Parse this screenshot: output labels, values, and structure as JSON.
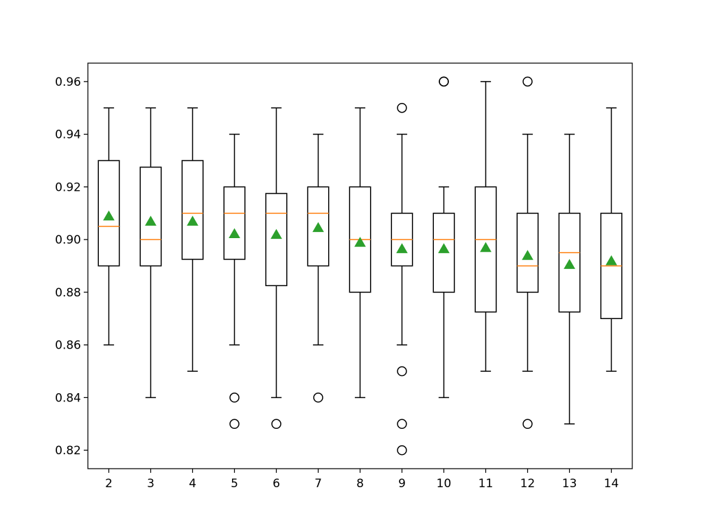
{
  "chart_data": {
    "type": "box",
    "title": "",
    "xlabel": "",
    "ylabel": "",
    "ylim": [
      0.813,
      0.967
    ],
    "yticks": [
      "0.82",
      "0.84",
      "0.86",
      "0.88",
      "0.90",
      "0.92",
      "0.94",
      "0.96"
    ],
    "ytick_values": [
      0.82,
      0.84,
      0.86,
      0.88,
      0.9,
      0.92,
      0.94,
      0.96
    ],
    "categories": [
      "2",
      "3",
      "4",
      "5",
      "6",
      "7",
      "8",
      "9",
      "10",
      "11",
      "12",
      "13",
      "14"
    ],
    "grid": false,
    "show_means": true,
    "boxes": [
      {
        "category": "2",
        "whislo": 0.86,
        "q1": 0.89,
        "median": 0.905,
        "q3": 0.93,
        "whishi": 0.95,
        "mean": 0.9087,
        "fliers": []
      },
      {
        "category": "3",
        "whislo": 0.84,
        "q1": 0.89,
        "median": 0.9,
        "q3": 0.9275,
        "whishi": 0.95,
        "mean": 0.9067,
        "fliers": []
      },
      {
        "category": "4",
        "whislo": 0.85,
        "q1": 0.8925,
        "median": 0.91,
        "q3": 0.93,
        "whishi": 0.95,
        "mean": 0.9067,
        "fliers": []
      },
      {
        "category": "5",
        "whislo": 0.86,
        "q1": 0.8925,
        "median": 0.91,
        "q3": 0.92,
        "whishi": 0.94,
        "mean": 0.902,
        "fliers": [
          0.84,
          0.83
        ]
      },
      {
        "category": "6",
        "whislo": 0.84,
        "q1": 0.8825,
        "median": 0.91,
        "q3": 0.9175,
        "whishi": 0.95,
        "mean": 0.9017,
        "fliers": [
          0.83
        ]
      },
      {
        "category": "7",
        "whislo": 0.86,
        "q1": 0.89,
        "median": 0.91,
        "q3": 0.92,
        "whishi": 0.94,
        "mean": 0.9043,
        "fliers": [
          0.84
        ]
      },
      {
        "category": "8",
        "whislo": 0.84,
        "q1": 0.88,
        "median": 0.9,
        "q3": 0.92,
        "whishi": 0.95,
        "mean": 0.8987,
        "fliers": []
      },
      {
        "category": "9",
        "whislo": 0.86,
        "q1": 0.89,
        "median": 0.9,
        "q3": 0.91,
        "whishi": 0.94,
        "mean": 0.8963,
        "fliers": [
          0.95,
          0.85,
          0.83,
          0.82
        ]
      },
      {
        "category": "10",
        "whislo": 0.84,
        "q1": 0.88,
        "median": 0.9,
        "q3": 0.91,
        "whishi": 0.92,
        "mean": 0.8963,
        "fliers": [
          0.96,
          0.96
        ]
      },
      {
        "category": "11",
        "whislo": 0.85,
        "q1": 0.8725,
        "median": 0.9,
        "q3": 0.92,
        "whishi": 0.96,
        "mean": 0.8967,
        "fliers": []
      },
      {
        "category": "12",
        "whislo": 0.85,
        "q1": 0.88,
        "median": 0.89,
        "q3": 0.91,
        "whishi": 0.94,
        "mean": 0.8937,
        "fliers": [
          0.96,
          0.83
        ]
      },
      {
        "category": "13",
        "whislo": 0.83,
        "q1": 0.8725,
        "median": 0.895,
        "q3": 0.91,
        "whishi": 0.94,
        "mean": 0.8903,
        "fliers": []
      },
      {
        "category": "14",
        "whislo": 0.85,
        "q1": 0.87,
        "median": 0.89,
        "q3": 0.91,
        "whishi": 0.95,
        "mean": 0.8917,
        "fliers": []
      }
    ],
    "colors": {
      "box": "#000000",
      "median": "#ff7f0e",
      "mean": "#2ca02c",
      "flier": "#000000"
    }
  }
}
